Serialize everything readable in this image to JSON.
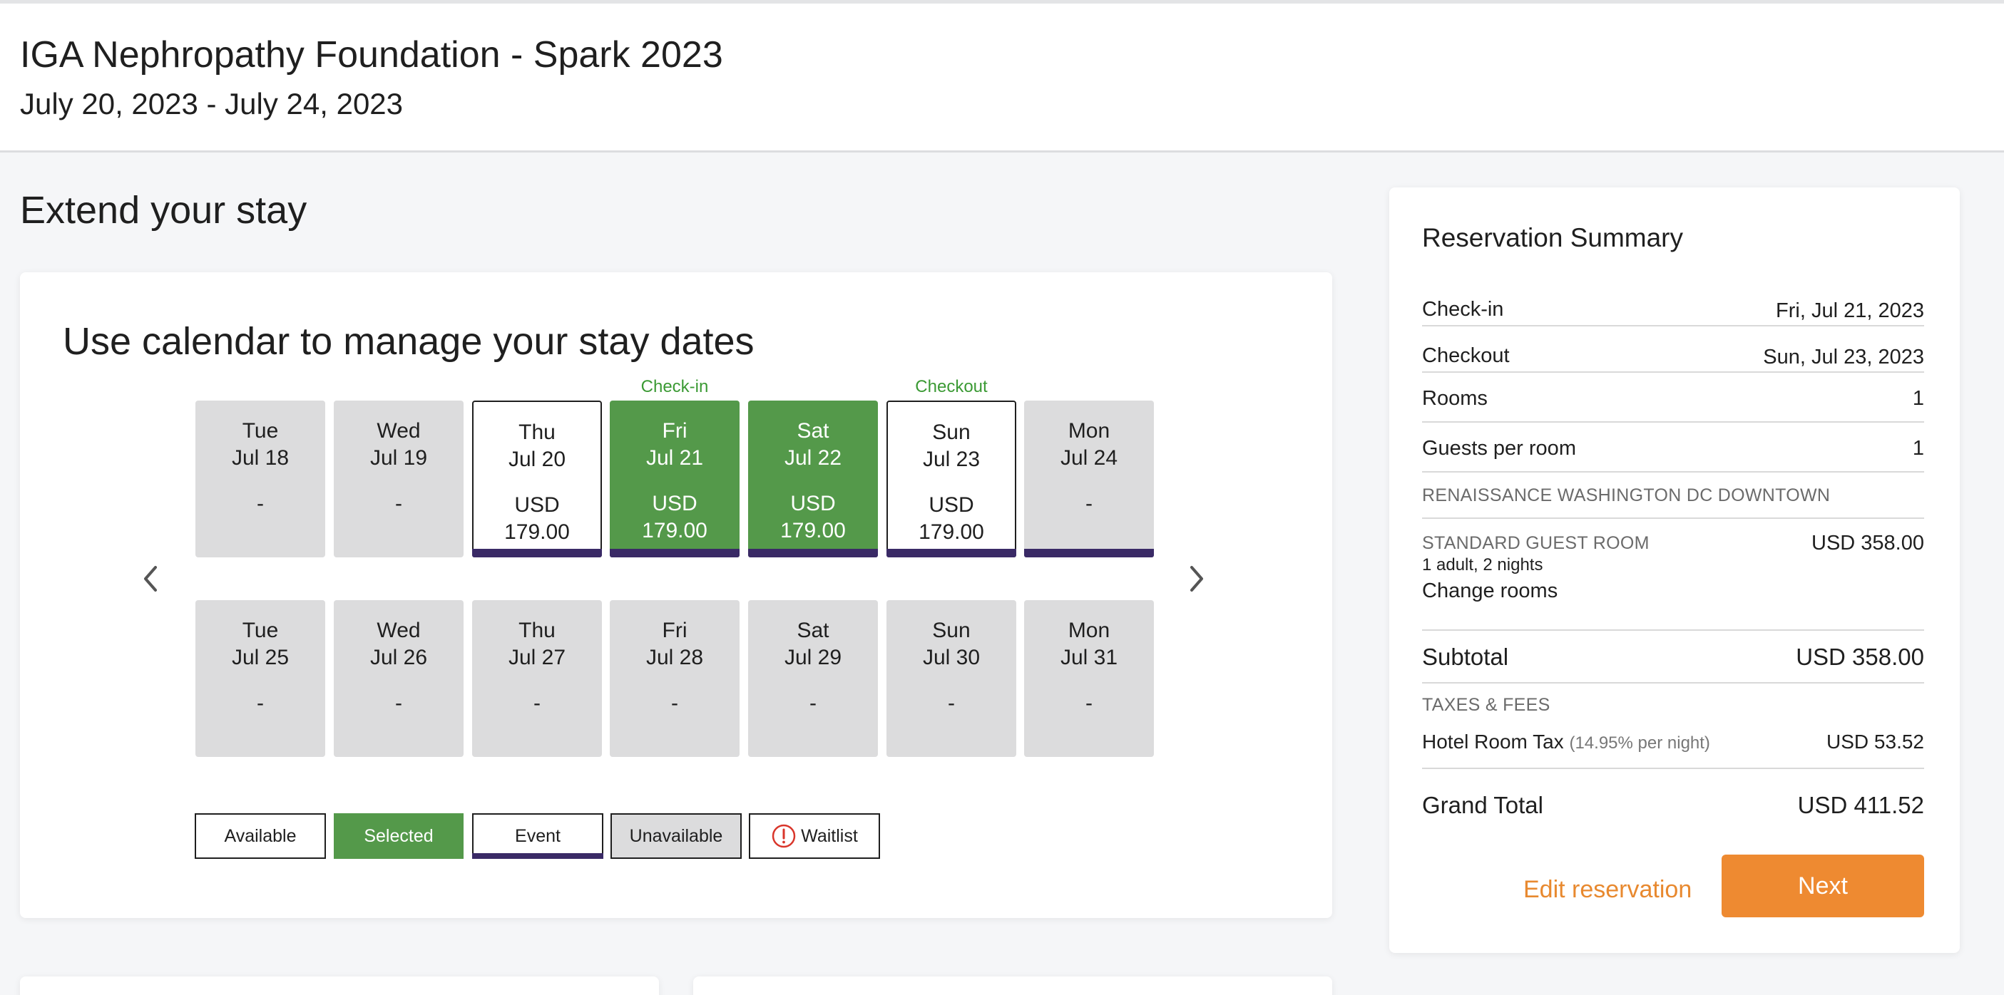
{
  "header": {
    "title": "IGA Nephropathy Foundation - Spark 2023",
    "dates": "July 20, 2023 - July 24, 2023"
  },
  "page": {
    "heading": "Extend your stay"
  },
  "calendar": {
    "heading": "Use calendar to manage your stay dates",
    "checkin_label": "Check-in",
    "checkout_label": "Checkout",
    "week1": [
      {
        "day": "Tue",
        "date": "Jul 18",
        "text": "-",
        "status": "unavailable",
        "event": false
      },
      {
        "day": "Wed",
        "date": "Jul 19",
        "text": "-",
        "status": "unavailable",
        "event": false
      },
      {
        "day": "Thu",
        "date": "Jul 20",
        "currency": "USD",
        "price": "179.00",
        "status": "available",
        "event": true
      },
      {
        "day": "Fri",
        "date": "Jul 21",
        "currency": "USD",
        "price": "179.00",
        "status": "selected",
        "event": true
      },
      {
        "day": "Sat",
        "date": "Jul 22",
        "currency": "USD",
        "price": "179.00",
        "status": "selected",
        "event": true
      },
      {
        "day": "Sun",
        "date": "Jul 23",
        "currency": "USD",
        "price": "179.00",
        "status": "available",
        "event": true
      },
      {
        "day": "Mon",
        "date": "Jul 24",
        "text": "-",
        "status": "unavailable",
        "event": true
      }
    ],
    "week2": [
      {
        "day": "Tue",
        "date": "Jul 25",
        "text": "-",
        "status": "unavailable",
        "event": false
      },
      {
        "day": "Wed",
        "date": "Jul 26",
        "text": "-",
        "status": "unavailable",
        "event": false
      },
      {
        "day": "Thu",
        "date": "Jul 27",
        "text": "-",
        "status": "unavailable",
        "event": false
      },
      {
        "day": "Fri",
        "date": "Jul 28",
        "text": "-",
        "status": "unavailable",
        "event": false
      },
      {
        "day": "Sat",
        "date": "Jul 29",
        "text": "-",
        "status": "unavailable",
        "event": false
      },
      {
        "day": "Sun",
        "date": "Jul 30",
        "text": "-",
        "status": "unavailable",
        "event": false
      },
      {
        "day": "Mon",
        "date": "Jul 31",
        "text": "-",
        "status": "unavailable",
        "event": false
      }
    ],
    "legend": {
      "available": "Available",
      "selected": "Selected",
      "event": "Event",
      "unavailable": "Unavailable",
      "waitlist": "Waitlist"
    },
    "icons": {
      "prev": "chevron-left-icon",
      "next": "chevron-right-icon",
      "waitlist": "alert-circle-icon"
    }
  },
  "summary": {
    "title": "Reservation Summary",
    "checkin_label": "Check-in",
    "checkin_value": "Fri, Jul 21, 2023",
    "checkout_label": "Checkout",
    "checkout_value": "Sun, Jul 23, 2023",
    "rooms_label": "Rooms",
    "rooms_value": "1",
    "guests_label": "Guests per room",
    "guests_value": "1",
    "hotel_name": "RENAISSANCE WASHINGTON DC DOWNTOWN",
    "room_type": "STANDARD GUEST ROOM",
    "room_price": "USD 358.00",
    "room_details": "1 adult, 2 nights",
    "change_rooms": "Change rooms",
    "subtotal_label": "Subtotal",
    "subtotal_value": "USD 358.00",
    "taxes_heading": "TAXES & FEES",
    "tax_label": "Hotel Room Tax",
    "tax_rate": "(14.95% per night)",
    "tax_value": "USD 53.52",
    "grand_total_label": "Grand Total",
    "grand_total_value": "USD 411.52",
    "edit_label": "Edit reservation",
    "next_label": "Next"
  },
  "colors": {
    "selected": "#54994a",
    "event_bar": "#3a2a66",
    "unavailable": "#dcdcdd",
    "accent": "#ee8a31",
    "checkin_text": "#3b9a34",
    "waitlist_icon": "#d9362b"
  }
}
